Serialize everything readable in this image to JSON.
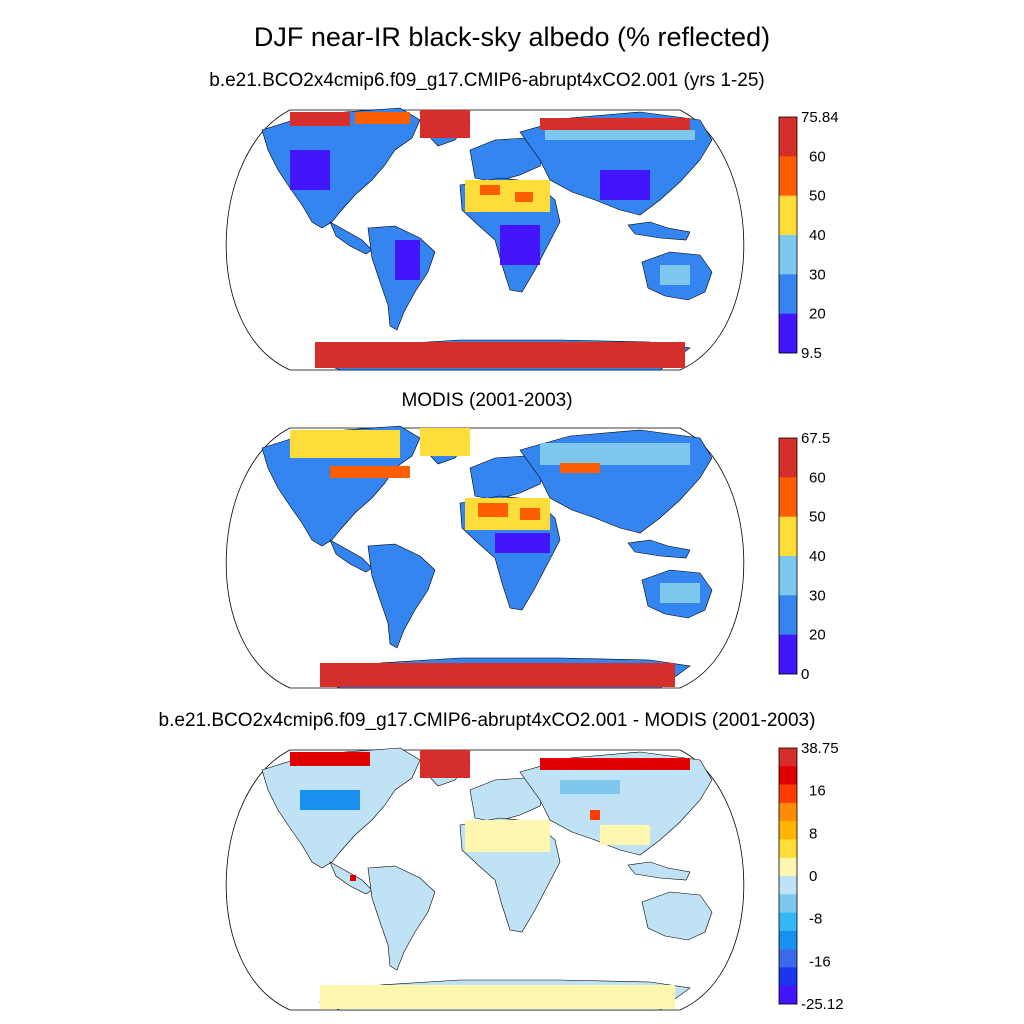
{
  "title": "DJF near-IR black-sky albedo (% reflected)",
  "panels": [
    {
      "title": "b.e21.BCO2x4cmip6.f09_g17.CMIP6-abrupt4xCO2.001 (yrs 1-25)",
      "colorbar": {
        "labels": [
          "75.84",
          "60",
          "50",
          "40",
          "30",
          "20",
          "9.5"
        ],
        "colors": [
          "#d62e2a",
          "#fd5f00",
          "#fedd3a",
          "#7ec8f0",
          "#3485ef",
          "#4215fb"
        ]
      }
    },
    {
      "title": "MODIS (2001-2003)",
      "colorbar": {
        "labels": [
          "67.5",
          "60",
          "50",
          "40",
          "30",
          "20",
          "0"
        ],
        "colors": [
          "#d62e2a",
          "#fd5f00",
          "#fedd3a",
          "#7ec8f0",
          "#3485ef",
          "#4215fb"
        ]
      }
    },
    {
      "title": "b.e21.BCO2x4cmip6.f09_g17.CMIP6-abrupt4xCO2.001 - MODIS (2001-2003)",
      "colorbar": {
        "labels": [
          "38.75",
          "16",
          "8",
          "0",
          "-8",
          "-16",
          "-25.12"
        ],
        "colors": [
          "#d62e2a",
          "#e00000",
          "#ff3c00",
          "#ff8c00",
          "#ffb400",
          "#fedd3a",
          "#fff6b0",
          "#bfe3f5",
          "#7ec8f0",
          "#35b8f5",
          "#1890f0",
          "#3a6ae8",
          "#1a34f0",
          "#4215fb"
        ]
      }
    }
  ]
}
